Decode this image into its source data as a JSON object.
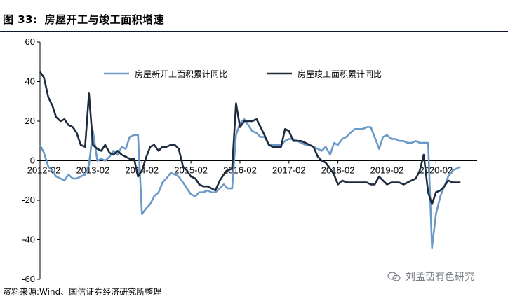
{
  "figure": {
    "number_label": "图 33:",
    "title": "房屋开工与竣工面积增速",
    "source": "资料来源:Wind、国信证券经济研究所整理",
    "watermark": "刘孟峦有色研究",
    "watermark_icon": "wechat-icon"
  },
  "chart_data": {
    "type": "line",
    "ylim": [
      -60,
      60
    ],
    "yticks": [
      -60,
      -40,
      -20,
      0,
      20,
      40,
      60
    ],
    "xlim": [
      2012.0,
      2020.92
    ],
    "xtick_labels": [
      "2012-02",
      "2013-02",
      "2014-02",
      "2015-02",
      "2016-02",
      "2017-02",
      "2018-02",
      "2019-02",
      "2020-02"
    ],
    "xtick_values": [
      2012.08,
      2013.08,
      2014.08,
      2015.08,
      2016.08,
      2017.08,
      2018.08,
      2019.08,
      2020.08
    ],
    "grid": false,
    "legend_position": "top",
    "series": [
      {
        "name": "房屋新开工面积累计同比",
        "color": "#6c9ac8",
        "points": [
          [
            2012.0,
            8
          ],
          [
            2012.08,
            4
          ],
          [
            2012.17,
            -3
          ],
          [
            2012.25,
            -5
          ],
          [
            2012.33,
            -8
          ],
          [
            2012.42,
            -9
          ],
          [
            2012.5,
            -10
          ],
          [
            2012.58,
            -7
          ],
          [
            2012.67,
            -9
          ],
          [
            2012.75,
            -9
          ],
          [
            2012.83,
            -8
          ],
          [
            2012.92,
            -7
          ],
          [
            2013.0,
            -2
          ],
          [
            2013.08,
            15
          ],
          [
            2013.17,
            0
          ],
          [
            2013.25,
            1
          ],
          [
            2013.33,
            0
          ],
          [
            2013.42,
            2
          ],
          [
            2013.5,
            5
          ],
          [
            2013.58,
            3
          ],
          [
            2013.67,
            7
          ],
          [
            2013.75,
            6
          ],
          [
            2013.83,
            12
          ],
          [
            2013.92,
            13
          ],
          [
            2014.0,
            13
          ],
          [
            2014.08,
            -27
          ],
          [
            2014.17,
            -24
          ],
          [
            2014.25,
            -22
          ],
          [
            2014.33,
            -18
          ],
          [
            2014.42,
            -16
          ],
          [
            2014.5,
            -11
          ],
          [
            2014.58,
            -9
          ],
          [
            2014.67,
            -6
          ],
          [
            2014.75,
            -7
          ],
          [
            2014.83,
            -8
          ],
          [
            2014.92,
            -11
          ],
          [
            2015.0,
            -14
          ],
          [
            2015.08,
            -17
          ],
          [
            2015.17,
            -18
          ],
          [
            2015.25,
            -16
          ],
          [
            2015.33,
            -16
          ],
          [
            2015.42,
            -15
          ],
          [
            2015.5,
            -16
          ],
          [
            2015.58,
            -16
          ],
          [
            2015.67,
            -14
          ],
          [
            2015.75,
            -12
          ],
          [
            2015.83,
            -14
          ],
          [
            2015.92,
            -14
          ],
          [
            2016.0,
            13
          ],
          [
            2016.08,
            19
          ],
          [
            2016.17,
            21
          ],
          [
            2016.25,
            18
          ],
          [
            2016.33,
            15
          ],
          [
            2016.42,
            14
          ],
          [
            2016.5,
            12
          ],
          [
            2016.58,
            12
          ],
          [
            2016.67,
            8
          ],
          [
            2016.75,
            8
          ],
          [
            2016.83,
            8
          ],
          [
            2016.92,
            8
          ],
          [
            2017.0,
            10
          ],
          [
            2017.08,
            11
          ],
          [
            2017.17,
            11
          ],
          [
            2017.25,
            10
          ],
          [
            2017.33,
            9
          ],
          [
            2017.42,
            8
          ],
          [
            2017.5,
            8
          ],
          [
            2017.58,
            7
          ],
          [
            2017.67,
            6
          ],
          [
            2017.75,
            5
          ],
          [
            2017.83,
            7
          ],
          [
            2017.92,
            3
          ],
          [
            2018.0,
            9
          ],
          [
            2018.08,
            8
          ],
          [
            2018.17,
            11
          ],
          [
            2018.25,
            12
          ],
          [
            2018.33,
            14
          ],
          [
            2018.42,
            16
          ],
          [
            2018.5,
            16
          ],
          [
            2018.58,
            16
          ],
          [
            2018.67,
            17
          ],
          [
            2018.75,
            17
          ],
          [
            2018.83,
            12
          ],
          [
            2018.92,
            6
          ],
          [
            2019.0,
            12
          ],
          [
            2019.08,
            13
          ],
          [
            2019.17,
            11
          ],
          [
            2019.25,
            11
          ],
          [
            2019.33,
            10
          ],
          [
            2019.42,
            10
          ],
          [
            2019.5,
            9
          ],
          [
            2019.58,
            9
          ],
          [
            2019.67,
            10
          ],
          [
            2019.75,
            9
          ],
          [
            2019.83,
            9
          ],
          [
            2019.92,
            9
          ],
          [
            2020.0,
            -44
          ],
          [
            2020.08,
            -27
          ],
          [
            2020.17,
            -18
          ],
          [
            2020.25,
            -13
          ],
          [
            2020.33,
            -8
          ],
          [
            2020.42,
            -5
          ],
          [
            2020.5,
            -4
          ],
          [
            2020.58,
            -3
          ]
        ]
      },
      {
        "name": "房屋竣工面积累计同比",
        "color": "#1e2b3e",
        "points": [
          [
            2012.0,
            45
          ],
          [
            2012.08,
            42
          ],
          [
            2012.17,
            32
          ],
          [
            2012.25,
            28
          ],
          [
            2012.33,
            22
          ],
          [
            2012.42,
            20
          ],
          [
            2012.5,
            21
          ],
          [
            2012.58,
            18
          ],
          [
            2012.67,
            17
          ],
          [
            2012.75,
            14
          ],
          [
            2012.83,
            8
          ],
          [
            2012.92,
            7
          ],
          [
            2013.0,
            34
          ],
          [
            2013.08,
            8
          ],
          [
            2013.17,
            6
          ],
          [
            2013.25,
            5
          ],
          [
            2013.33,
            8
          ],
          [
            2013.42,
            4
          ],
          [
            2013.5,
            3
          ],
          [
            2013.58,
            5
          ],
          [
            2013.67,
            3
          ],
          [
            2013.75,
            2
          ],
          [
            2013.83,
            1
          ],
          [
            2013.92,
            1
          ],
          [
            2014.0,
            -8
          ],
          [
            2014.08,
            -5
          ],
          [
            2014.17,
            2
          ],
          [
            2014.25,
            7
          ],
          [
            2014.33,
            8
          ],
          [
            2014.42,
            5
          ],
          [
            2014.5,
            7
          ],
          [
            2014.58,
            7
          ],
          [
            2014.67,
            8
          ],
          [
            2014.75,
            8
          ],
          [
            2014.83,
            6
          ],
          [
            2014.92,
            -3
          ],
          [
            2015.0,
            -5
          ],
          [
            2015.08,
            -8
          ],
          [
            2015.17,
            -9
          ],
          [
            2015.25,
            -12
          ],
          [
            2015.33,
            -13
          ],
          [
            2015.42,
            -13
          ],
          [
            2015.5,
            -14
          ],
          [
            2015.58,
            -15
          ],
          [
            2015.67,
            -10
          ],
          [
            2015.75,
            -7
          ],
          [
            2015.83,
            -5
          ],
          [
            2015.92,
            -4
          ],
          [
            2016.0,
            29
          ],
          [
            2016.08,
            17
          ],
          [
            2016.17,
            20
          ],
          [
            2016.25,
            20
          ],
          [
            2016.33,
            20
          ],
          [
            2016.42,
            21
          ],
          [
            2016.5,
            17
          ],
          [
            2016.58,
            13
          ],
          [
            2016.67,
            8
          ],
          [
            2016.75,
            7
          ],
          [
            2016.83,
            7
          ],
          [
            2016.92,
            7
          ],
          [
            2017.0,
            16
          ],
          [
            2017.08,
            15
          ],
          [
            2017.17,
            10
          ],
          [
            2017.25,
            10
          ],
          [
            2017.33,
            10
          ],
          [
            2017.42,
            9
          ],
          [
            2017.5,
            8
          ],
          [
            2017.58,
            7
          ],
          [
            2017.67,
            2
          ],
          [
            2017.75,
            0
          ],
          [
            2017.83,
            -1
          ],
          [
            2017.92,
            -4
          ],
          [
            2018.0,
            -7
          ],
          [
            2018.08,
            -12
          ],
          [
            2018.17,
            -10
          ],
          [
            2018.25,
            -11
          ],
          [
            2018.33,
            -11
          ],
          [
            2018.42,
            -11
          ],
          [
            2018.5,
            -11
          ],
          [
            2018.58,
            -11
          ],
          [
            2018.67,
            -11
          ],
          [
            2018.75,
            -12
          ],
          [
            2018.83,
            -12
          ],
          [
            2018.92,
            -8
          ],
          [
            2019.0,
            -10
          ],
          [
            2019.08,
            -12
          ],
          [
            2019.17,
            -11
          ],
          [
            2019.25,
            -11
          ],
          [
            2019.33,
            -11
          ],
          [
            2019.42,
            -12
          ],
          [
            2019.5,
            -11
          ],
          [
            2019.58,
            -10
          ],
          [
            2019.67,
            -9
          ],
          [
            2019.75,
            -5
          ],
          [
            2019.83,
            3
          ],
          [
            2019.92,
            -16
          ],
          [
            2020.0,
            -22
          ],
          [
            2020.08,
            -16
          ],
          [
            2020.17,
            -15
          ],
          [
            2020.25,
            -13
          ],
          [
            2020.33,
            -10
          ],
          [
            2020.42,
            -11
          ],
          [
            2020.5,
            -11
          ],
          [
            2020.58,
            -11
          ]
        ]
      }
    ]
  }
}
